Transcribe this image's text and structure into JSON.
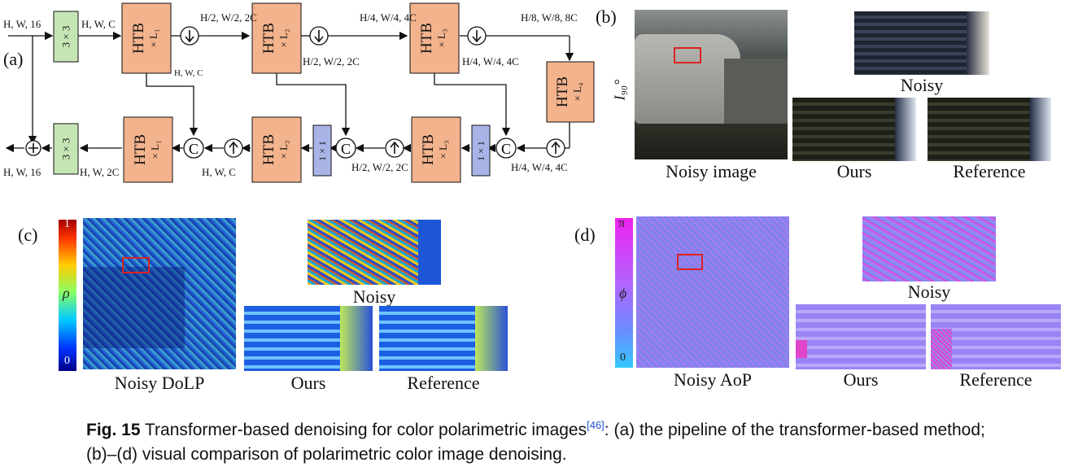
{
  "panels": {
    "a": {
      "label": "(a)",
      "conv3_label": "3 × 3",
      "conv1_label": "1 × 1",
      "htb_text": "HTB",
      "blocks": {
        "enc1": "× L₁",
        "enc2": "× L₂",
        "enc3": "× L₃",
        "bottleneck": "× L₄",
        "dec3": "× L₃",
        "dec2": "× L₂",
        "dec1": "× L₁"
      },
      "dims": {
        "input": "H, W, 16",
        "after_conv": "H, W, C",
        "skip1": "H, W, C",
        "down1": "H/2, W/2, 2C",
        "skip2": "H/2, W/2, 2C",
        "down2": "H/4, W/4, 4C",
        "skip3": "H/4, W/4, 4C",
        "down3": "H/8, W/8, 8C",
        "up3": "H/4, W/4, 4C",
        "up2": "H/2, W/2, 2C",
        "up1": "H, W, C",
        "dec_out": "H, W, 2C",
        "output": "H, W, 16"
      }
    },
    "b": {
      "label": "(b)",
      "side_label": "I₉₀°",
      "main_caption": "Noisy image",
      "noisy_caption": "Noisy",
      "ours_caption": "Ours",
      "ref_caption": "Reference"
    },
    "c": {
      "label": "(c)",
      "colorbar_top": "1",
      "colorbar_bottom": "0",
      "colorbar_symbol": "ρ",
      "main_caption": "Noisy DoLP",
      "noisy_caption": "Noisy",
      "ours_caption": "Ours",
      "ref_caption": "Reference"
    },
    "d": {
      "label": "(d)",
      "colorbar_top": "π",
      "colorbar_bottom": "0",
      "colorbar_symbol": "ϕ",
      "main_caption": "Noisy AoP",
      "noisy_caption": "Noisy",
      "ours_caption": "Ours",
      "ref_caption": "Reference"
    }
  },
  "caption": {
    "fig_label": "Fig. 15",
    "text_before_ref": "Transformer-based denoising for color polarimetric images",
    "ref": "[46]",
    "text_after_ref": ": (a) the pipeline of the transformer-based method; (b)–(d) visual comparison of polarimetric color image denoising."
  },
  "colors": {
    "htb": "#f3b38d",
    "conv3": "#c6e5b5",
    "conv1": "#a9b4e6",
    "caption_ref": "#2255cc"
  }
}
